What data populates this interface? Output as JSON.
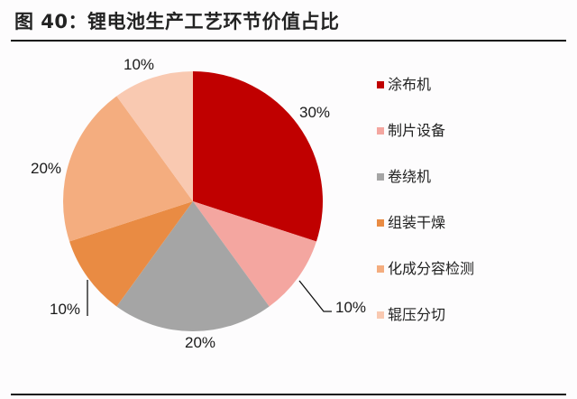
{
  "figure": {
    "title": "图 40：锂电池生产工艺环节价值占比"
  },
  "chart_data": {
    "type": "pie",
    "title": "图 40：锂电池生产工艺环节价值占比",
    "categories": [
      "涂布机",
      "制片设备",
      "卷绕机",
      "组装干燥",
      "化成分容检测",
      "辊压分切"
    ],
    "values": [
      30,
      10,
      20,
      10,
      20,
      10
    ],
    "unit": "%",
    "colors": [
      "#c00000",
      "#f4a6a0",
      "#a5a5a5",
      "#e98b43",
      "#f4ad7f",
      "#f9c9b1"
    ],
    "start_angle_deg": 0,
    "direction": "clockwise",
    "data_labels": [
      "30%",
      "10%",
      "20%",
      "10%",
      "20%",
      "10%"
    ],
    "legend_position": "right"
  },
  "legend": {
    "items": [
      {
        "label": "涂布机",
        "color": "#c00000"
      },
      {
        "label": "制片设备",
        "color": "#f4a6a0"
      },
      {
        "label": "卷绕机",
        "color": "#a5a5a5"
      },
      {
        "label": "组装干燥",
        "color": "#e98b43"
      },
      {
        "label": "化成分容检测",
        "color": "#f4ad7f"
      },
      {
        "label": "辊压分切",
        "color": "#f9c9b1"
      }
    ]
  },
  "labels": {
    "coating": "30%",
    "sheet": "10%",
    "winding": "20%",
    "assembly": "10%",
    "formation": "20%",
    "slitting": "10%"
  }
}
